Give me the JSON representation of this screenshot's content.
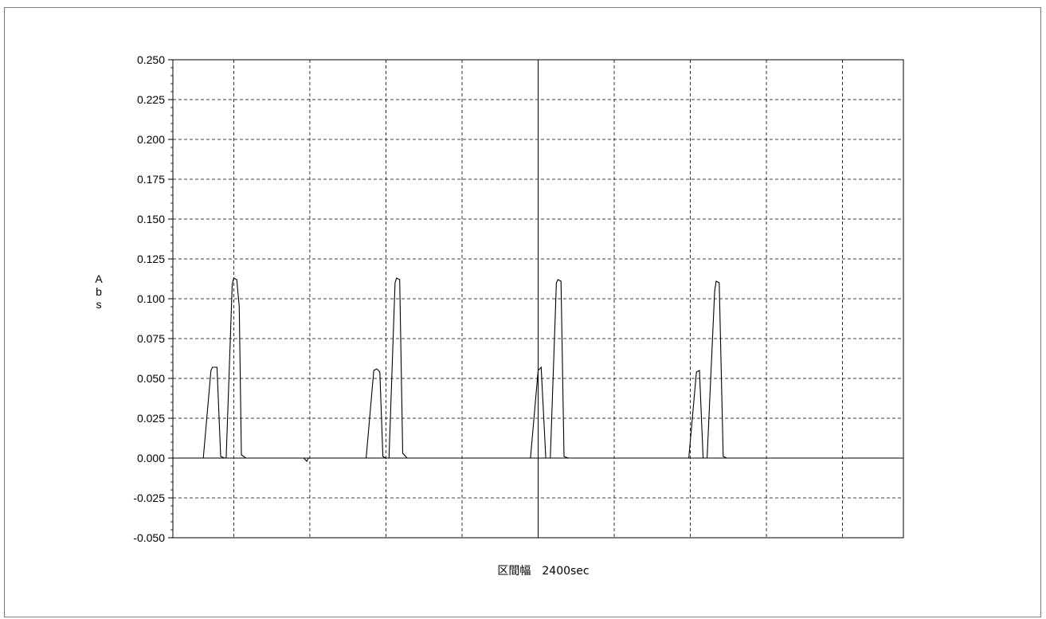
{
  "chart_data": {
    "type": "line",
    "title": "",
    "ylabel": "Abs",
    "xlabel": "区間幅　2400sec",
    "ylim": [
      -0.05,
      0.25
    ],
    "yticks": [
      0.25,
      0.225,
      0.2,
      0.175,
      0.15,
      0.125,
      0.1,
      0.075,
      0.05,
      0.025,
      0.0,
      -0.025,
      -0.05
    ],
    "ytick_labels": [
      "0.250",
      "0.225",
      "0.200",
      "0.175",
      "0.150",
      "0.125",
      "0.100",
      "0.075",
      "0.050",
      "0.025",
      "0.000",
      "-0.025",
      "-0.050"
    ],
    "xlim": [
      0,
      2400
    ],
    "x_grid_count": 9,
    "grid": true,
    "series": [
      {
        "values": [
          [
            0,
            0.0
          ],
          [
            70,
            0.0
          ],
          [
            80,
            0.0
          ],
          [
            90,
            0.0
          ],
          [
            100,
            0.0
          ],
          [
            125,
            0.055
          ],
          [
            130,
            0.057
          ],
          [
            145,
            0.057
          ],
          [
            157,
            0.001
          ],
          [
            170,
            0.0
          ],
          [
            175,
            0.0
          ],
          [
            195,
            0.109
          ],
          [
            200,
            0.113
          ],
          [
            210,
            0.112
          ],
          [
            218,
            0.095
          ],
          [
            225,
            0.002
          ],
          [
            240,
            0.0
          ],
          [
            300,
            0.0
          ],
          [
            350,
            0.0
          ],
          [
            400,
            0.0
          ],
          [
            430,
            0.0
          ],
          [
            440,
            -0.002
          ],
          [
            445,
            0.0
          ],
          [
            500,
            0.0
          ],
          [
            600,
            0.0
          ],
          [
            620,
            0.0
          ],
          [
            635,
            0.0
          ],
          [
            660,
            0.055
          ],
          [
            670,
            0.056
          ],
          [
            680,
            0.054
          ],
          [
            690,
            0.001
          ],
          [
            700,
            0.0
          ],
          [
            710,
            0.0
          ],
          [
            730,
            0.11
          ],
          [
            735,
            0.113
          ],
          [
            745,
            0.112
          ],
          [
            755,
            0.003
          ],
          [
            770,
            0.0
          ],
          [
            900,
            0.0
          ],
          [
            1000,
            0.0
          ],
          [
            1160,
            0.0
          ],
          [
            1175,
            0.0
          ],
          [
            1200,
            0.055
          ],
          [
            1210,
            0.057
          ],
          [
            1225,
            0.0
          ],
          [
            1240,
            0.0
          ],
          [
            1260,
            0.11
          ],
          [
            1265,
            0.112
          ],
          [
            1275,
            0.111
          ],
          [
            1285,
            0.001
          ],
          [
            1300,
            0.0
          ],
          [
            1400,
            0.0
          ],
          [
            1500,
            0.0
          ],
          [
            1680,
            0.0
          ],
          [
            1695,
            0.0
          ],
          [
            1720,
            0.054
          ],
          [
            1730,
            0.055
          ],
          [
            1742,
            0.0
          ],
          [
            1755,
            0.0
          ],
          [
            1780,
            0.105
          ],
          [
            1785,
            0.111
          ],
          [
            1795,
            0.11
          ],
          [
            1808,
            0.001
          ],
          [
            1820,
            0.0
          ],
          [
            1900,
            0.0
          ],
          [
            2000,
            0.0
          ],
          [
            2100,
            0.0
          ],
          [
            2200,
            0.0
          ],
          [
            2250,
            0.0
          ],
          [
            2400,
            0.0
          ]
        ]
      }
    ]
  }
}
